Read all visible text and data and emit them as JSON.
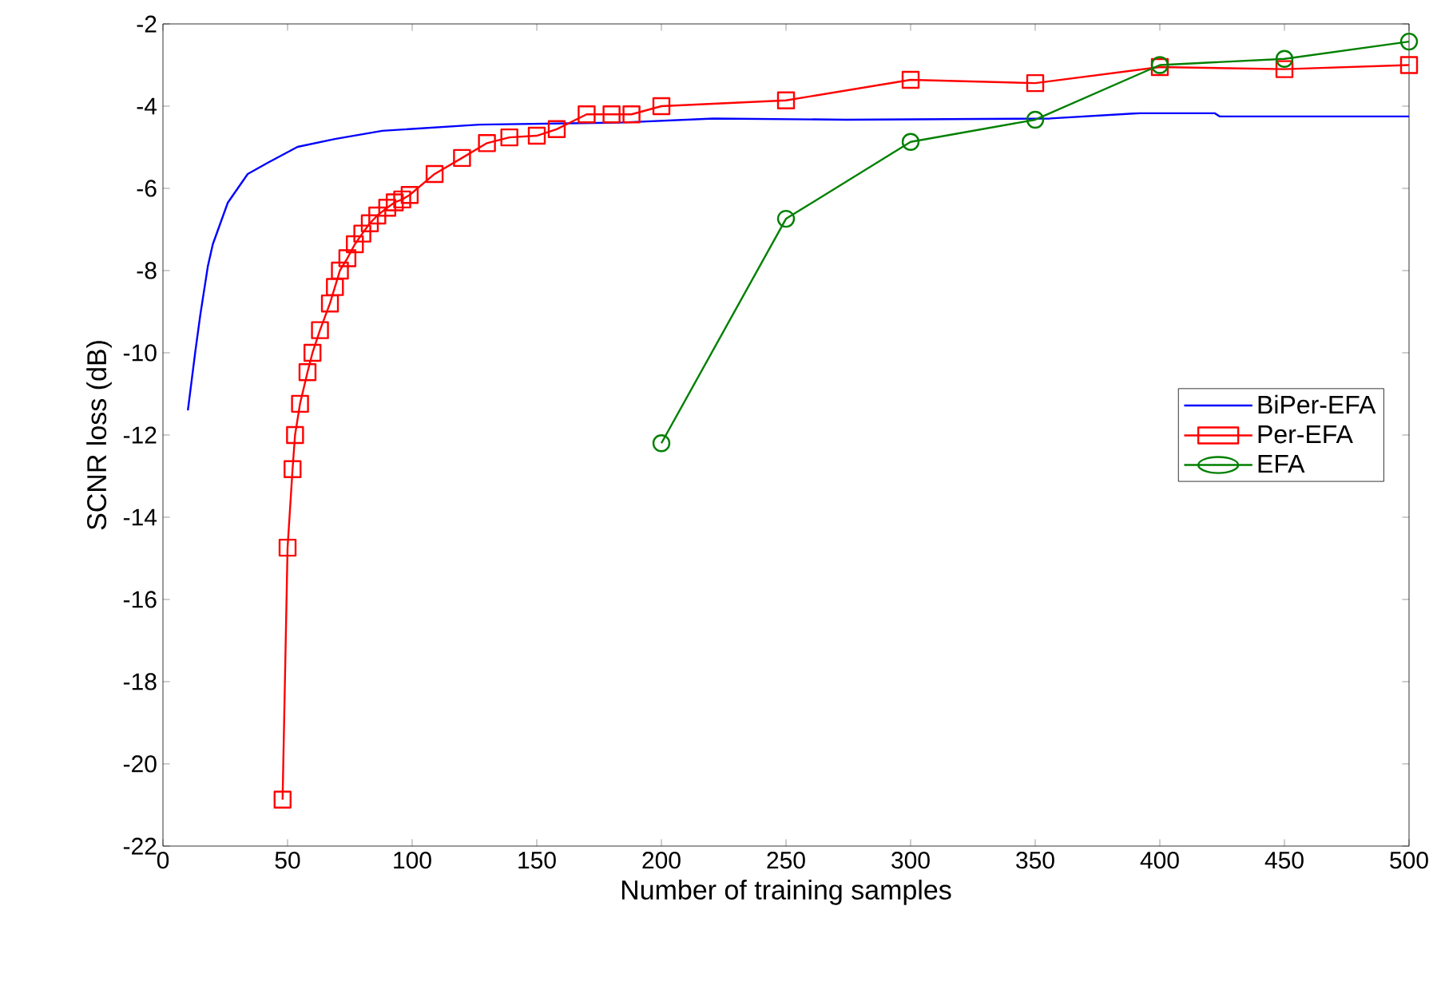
{
  "chart_data": {
    "type": "line",
    "xlabel": "Number of training samples",
    "ylabel": "SCNR loss (dB)",
    "xlim": [
      0,
      500
    ],
    "ylim": [
      -22,
      -2
    ],
    "xticks": [
      0,
      50,
      100,
      150,
      200,
      250,
      300,
      350,
      400,
      450,
      500
    ],
    "yticks": [
      -22,
      -20,
      -18,
      -16,
      -14,
      -12,
      -10,
      -8,
      -6,
      -4,
      -2
    ],
    "grid": false,
    "legend": "right",
    "series": [
      {
        "name": "BiPer-EFA",
        "color": "#0000ff",
        "marker": "none",
        "x": [
          10,
          13,
          15,
          18,
          20,
          26,
          34,
          42,
          54,
          69,
          88,
          127,
          183,
          221,
          274,
          356,
          392,
          422,
          424,
          500
        ],
        "values": [
          -11.4,
          -9.96,
          -9.07,
          -7.9,
          -7.36,
          -6.35,
          -5.65,
          -5.38,
          -4.99,
          -4.8,
          -4.6,
          -4.45,
          -4.4,
          -4.3,
          -4.33,
          -4.3,
          -4.17,
          -4.17,
          -4.25,
          -4.25
        ]
      },
      {
        "name": "Per-EFA",
        "color": "#ff0000",
        "marker": "square",
        "x": [
          48,
          50,
          52,
          53,
          55,
          58,
          60,
          63,
          67,
          69,
          71,
          74,
          77,
          80,
          83,
          86,
          90,
          93,
          96,
          99,
          109,
          120,
          130,
          139,
          150,
          158,
          170,
          180,
          188,
          200,
          250,
          300,
          350,
          400,
          450,
          500
        ],
        "values": [
          -20.87,
          -14.74,
          -12.83,
          -12.0,
          -11.24,
          -10.47,
          -10.0,
          -9.45,
          -8.8,
          -8.4,
          -8.0,
          -7.7,
          -7.36,
          -7.1,
          -6.85,
          -6.66,
          -6.47,
          -6.34,
          -6.27,
          -6.16,
          -5.65,
          -5.26,
          -4.9,
          -4.76,
          -4.72,
          -4.56,
          -4.2,
          -4.2,
          -4.2,
          -4.0,
          -3.86,
          -3.36,
          -3.44,
          -3.05,
          -3.1,
          -3.0
        ]
      },
      {
        "name": "EFA",
        "color": "#008000",
        "marker": "circle",
        "x": [
          200,
          250,
          300,
          350,
          400,
          450,
          500
        ],
        "values": [
          -12.2,
          -6.74,
          -4.87,
          -4.33,
          -3.0,
          -2.85,
          -2.43
        ]
      }
    ]
  }
}
